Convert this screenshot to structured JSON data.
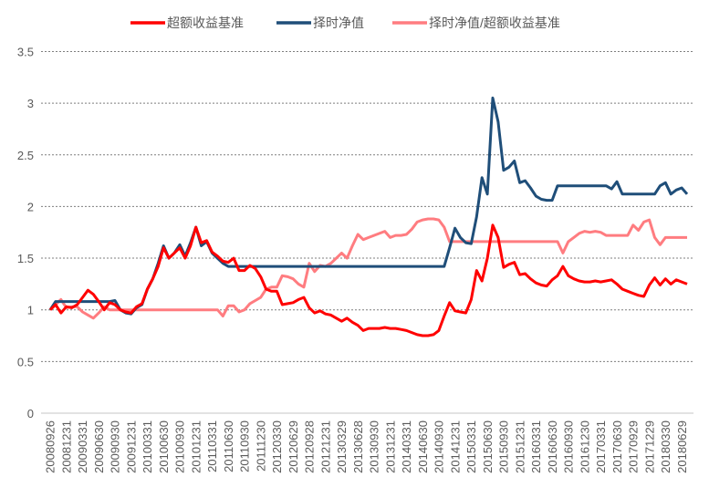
{
  "chart_data": {
    "type": "line",
    "title": "",
    "xlabel": "",
    "ylabel": "",
    "ylim": [
      0,
      3.5
    ],
    "yticks": [
      "0",
      "0.5",
      "1",
      "1.5",
      "2",
      "2.5",
      "3",
      "3.5"
    ],
    "grid": "horizontal dotted",
    "legend_position": "top",
    "xtick_labels": [
      "20080926",
      "20081231",
      "20090331",
      "20090630",
      "20090930",
      "20091231",
      "20100331",
      "20100630",
      "20100930",
      "20101231",
      "20110331",
      "20110630",
      "20110930",
      "20111230",
      "20120330",
      "20120629",
      "20120928",
      "20121231",
      "20130329",
      "20130628",
      "20130930",
      "20131231",
      "20140331",
      "20140630",
      "20140930",
      "20141231",
      "20150331",
      "20150630",
      "20150930",
      "20151231",
      "20160331",
      "20160630",
      "20160930",
      "20161230",
      "20170331",
      "20170630",
      "20170929",
      "20171229",
      "20180330",
      "20180629"
    ],
    "x": [
      "2008-09",
      "2008-10",
      "2008-11",
      "2008-12",
      "2009-01",
      "2009-02",
      "2009-03",
      "2009-04",
      "2009-05",
      "2009-06",
      "2009-07",
      "2009-08",
      "2009-09",
      "2009-10",
      "2009-11",
      "2009-12",
      "2010-01",
      "2010-02",
      "2010-03",
      "2010-04",
      "2010-05",
      "2010-06",
      "2010-07",
      "2010-08",
      "2010-09",
      "2010-10",
      "2010-11",
      "2010-12",
      "2011-01",
      "2011-02",
      "2011-03",
      "2011-04",
      "2011-05",
      "2011-06",
      "2011-07",
      "2011-08",
      "2011-09",
      "2011-10",
      "2011-11",
      "2011-12",
      "2012-01",
      "2012-02",
      "2012-03",
      "2012-04",
      "2012-05",
      "2012-06",
      "2012-07",
      "2012-08",
      "2012-09",
      "2012-10",
      "2012-11",
      "2012-12",
      "2013-01",
      "2013-02",
      "2013-03",
      "2013-04",
      "2013-05",
      "2013-06",
      "2013-07",
      "2013-08",
      "2013-09",
      "2013-10",
      "2013-11",
      "2013-12",
      "2014-01",
      "2014-02",
      "2014-03",
      "2014-04",
      "2014-05",
      "2014-06",
      "2014-07",
      "2014-08",
      "2014-09",
      "2014-10",
      "2014-11",
      "2014-12",
      "2015-01",
      "2015-02",
      "2015-03",
      "2015-04",
      "2015-05",
      "2015-06",
      "2015-07",
      "2015-08",
      "2015-09",
      "2015-10",
      "2015-11",
      "2015-12",
      "2016-01",
      "2016-02",
      "2016-03",
      "2016-04",
      "2016-05",
      "2016-06",
      "2016-07",
      "2016-08",
      "2016-09",
      "2016-10",
      "2016-11",
      "2016-12",
      "2017-01",
      "2017-02",
      "2017-03",
      "2017-04",
      "2017-05",
      "2017-06",
      "2017-07",
      "2017-08",
      "2017-09",
      "2017-10",
      "2017-11",
      "2017-12",
      "2018-01",
      "2018-02",
      "2018-03",
      "2018-04",
      "2018-05",
      "2018-06",
      "2018-07"
    ],
    "series": [
      {
        "name": "超额收益基准",
        "color": "#ff0000",
        "values": [
          1.0,
          1.05,
          0.97,
          1.03,
          1.02,
          1.05,
          1.12,
          1.19,
          1.15,
          1.08,
          1.0,
          1.07,
          1.05,
          1.0,
          0.98,
          0.97,
          1.03,
          1.06,
          1.2,
          1.3,
          1.42,
          1.6,
          1.5,
          1.55,
          1.6,
          1.5,
          1.62,
          1.8,
          1.65,
          1.67,
          1.56,
          1.52,
          1.47,
          1.46,
          1.5,
          1.38,
          1.38,
          1.43,
          1.4,
          1.32,
          1.2,
          1.18,
          1.18,
          1.05,
          1.06,
          1.07,
          1.1,
          1.12,
          1.02,
          0.97,
          0.99,
          0.96,
          0.95,
          0.92,
          0.89,
          0.92,
          0.88,
          0.85,
          0.8,
          0.82,
          0.82,
          0.82,
          0.83,
          0.82,
          0.82,
          0.81,
          0.8,
          0.78,
          0.76,
          0.75,
          0.75,
          0.76,
          0.8,
          0.94,
          1.07,
          0.99,
          0.98,
          0.97,
          1.1,
          1.38,
          1.28,
          1.5,
          1.82,
          1.7,
          1.41,
          1.44,
          1.46,
          1.34,
          1.35,
          1.3,
          1.26,
          1.24,
          1.23,
          1.29,
          1.33,
          1.42,
          1.33,
          1.3,
          1.28,
          1.27,
          1.27,
          1.28,
          1.27,
          1.28,
          1.29,
          1.25,
          1.2,
          1.18,
          1.16,
          1.14,
          1.13,
          1.24,
          1.31,
          1.24,
          1.3,
          1.25,
          1.29,
          1.27,
          1.25
        ]
      },
      {
        "name": "择时净值",
        "color": "#1f4e79",
        "values": [
          1.0,
          1.08,
          1.08,
          1.08,
          1.08,
          1.08,
          1.08,
          1.08,
          1.08,
          1.08,
          1.08,
          1.08,
          1.09,
          1.0,
          0.97,
          0.96,
          1.02,
          1.05,
          1.2,
          1.3,
          1.45,
          1.62,
          1.5,
          1.55,
          1.63,
          1.52,
          1.65,
          1.8,
          1.62,
          1.66,
          1.55,
          1.5,
          1.45,
          1.42,
          1.42,
          1.42,
          1.42,
          1.42,
          1.42,
          1.42,
          1.42,
          1.42,
          1.42,
          1.42,
          1.42,
          1.42,
          1.42,
          1.42,
          1.42,
          1.42,
          1.42,
          1.42,
          1.42,
          1.42,
          1.42,
          1.42,
          1.42,
          1.42,
          1.42,
          1.42,
          1.42,
          1.42,
          1.42,
          1.42,
          1.42,
          1.42,
          1.42,
          1.42,
          1.42,
          1.42,
          1.42,
          1.42,
          1.42,
          1.42,
          1.6,
          1.79,
          1.7,
          1.65,
          1.64,
          1.9,
          2.28,
          2.12,
          3.05,
          2.82,
          2.35,
          2.38,
          2.44,
          2.23,
          2.25,
          2.18,
          2.1,
          2.07,
          2.06,
          2.06,
          2.2,
          2.2,
          2.2,
          2.2,
          2.2,
          2.2,
          2.2,
          2.2,
          2.2,
          2.2,
          2.17,
          2.24,
          2.12,
          2.12,
          2.12,
          2.12,
          2.12,
          2.12,
          2.12,
          2.2,
          2.23,
          2.12,
          2.16,
          2.18,
          2.12
        ]
      },
      {
        "name": "择时净值/超额收益基准",
        "color": "#ff7c80",
        "values": [
          1.0,
          1.05,
          1.1,
          1.02,
          1.03,
          1.03,
          0.98,
          0.95,
          0.92,
          0.97,
          1.03,
          1.0,
          1.0,
          1.0,
          1.0,
          1.0,
          1.0,
          1.0,
          1.0,
          1.0,
          1.0,
          1.0,
          1.0,
          1.0,
          1.0,
          1.0,
          1.0,
          1.0,
          1.0,
          1.0,
          1.0,
          1.0,
          0.94,
          1.04,
          1.04,
          0.98,
          1.0,
          1.06,
          1.09,
          1.12,
          1.2,
          1.22,
          1.22,
          1.33,
          1.32,
          1.3,
          1.25,
          1.22,
          1.45,
          1.37,
          1.43,
          1.42,
          1.45,
          1.5,
          1.55,
          1.5,
          1.62,
          1.73,
          1.68,
          1.7,
          1.72,
          1.74,
          1.76,
          1.7,
          1.72,
          1.72,
          1.73,
          1.78,
          1.85,
          1.87,
          1.88,
          1.88,
          1.87,
          1.8,
          1.66,
          1.66,
          1.66,
          1.66,
          1.66,
          1.66,
          1.66,
          1.66,
          1.66,
          1.66,
          1.66,
          1.66,
          1.66,
          1.66,
          1.66,
          1.66,
          1.66,
          1.66,
          1.66,
          1.66,
          1.66,
          1.55,
          1.66,
          1.7,
          1.74,
          1.76,
          1.75,
          1.76,
          1.75,
          1.72,
          1.72,
          1.72,
          1.72,
          1.72,
          1.82,
          1.77,
          1.85,
          1.87,
          1.7,
          1.63,
          1.7,
          1.7,
          1.7,
          1.7,
          1.7
        ]
      }
    ]
  }
}
